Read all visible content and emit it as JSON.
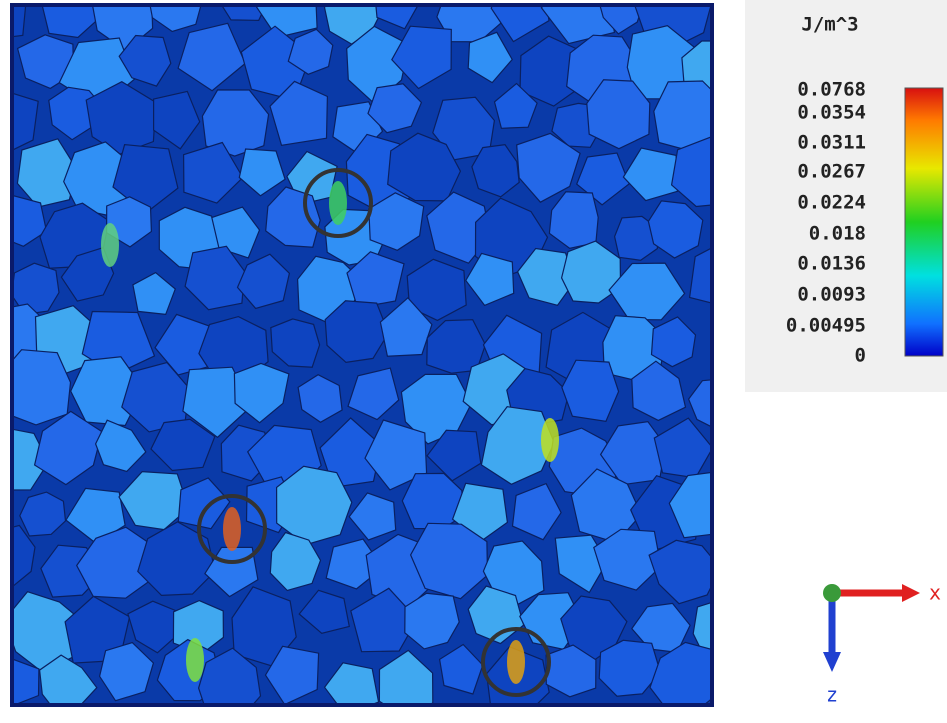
{
  "legend": {
    "unit": "J/m^3",
    "labels": [
      "0.0768",
      "0.0354",
      "0.0311",
      "0.0267",
      "0.0224",
      "0.018",
      "0.0136",
      "0.0093",
      "0.00495",
      "0"
    ]
  },
  "axes": {
    "x": "x",
    "z": "z"
  }
}
